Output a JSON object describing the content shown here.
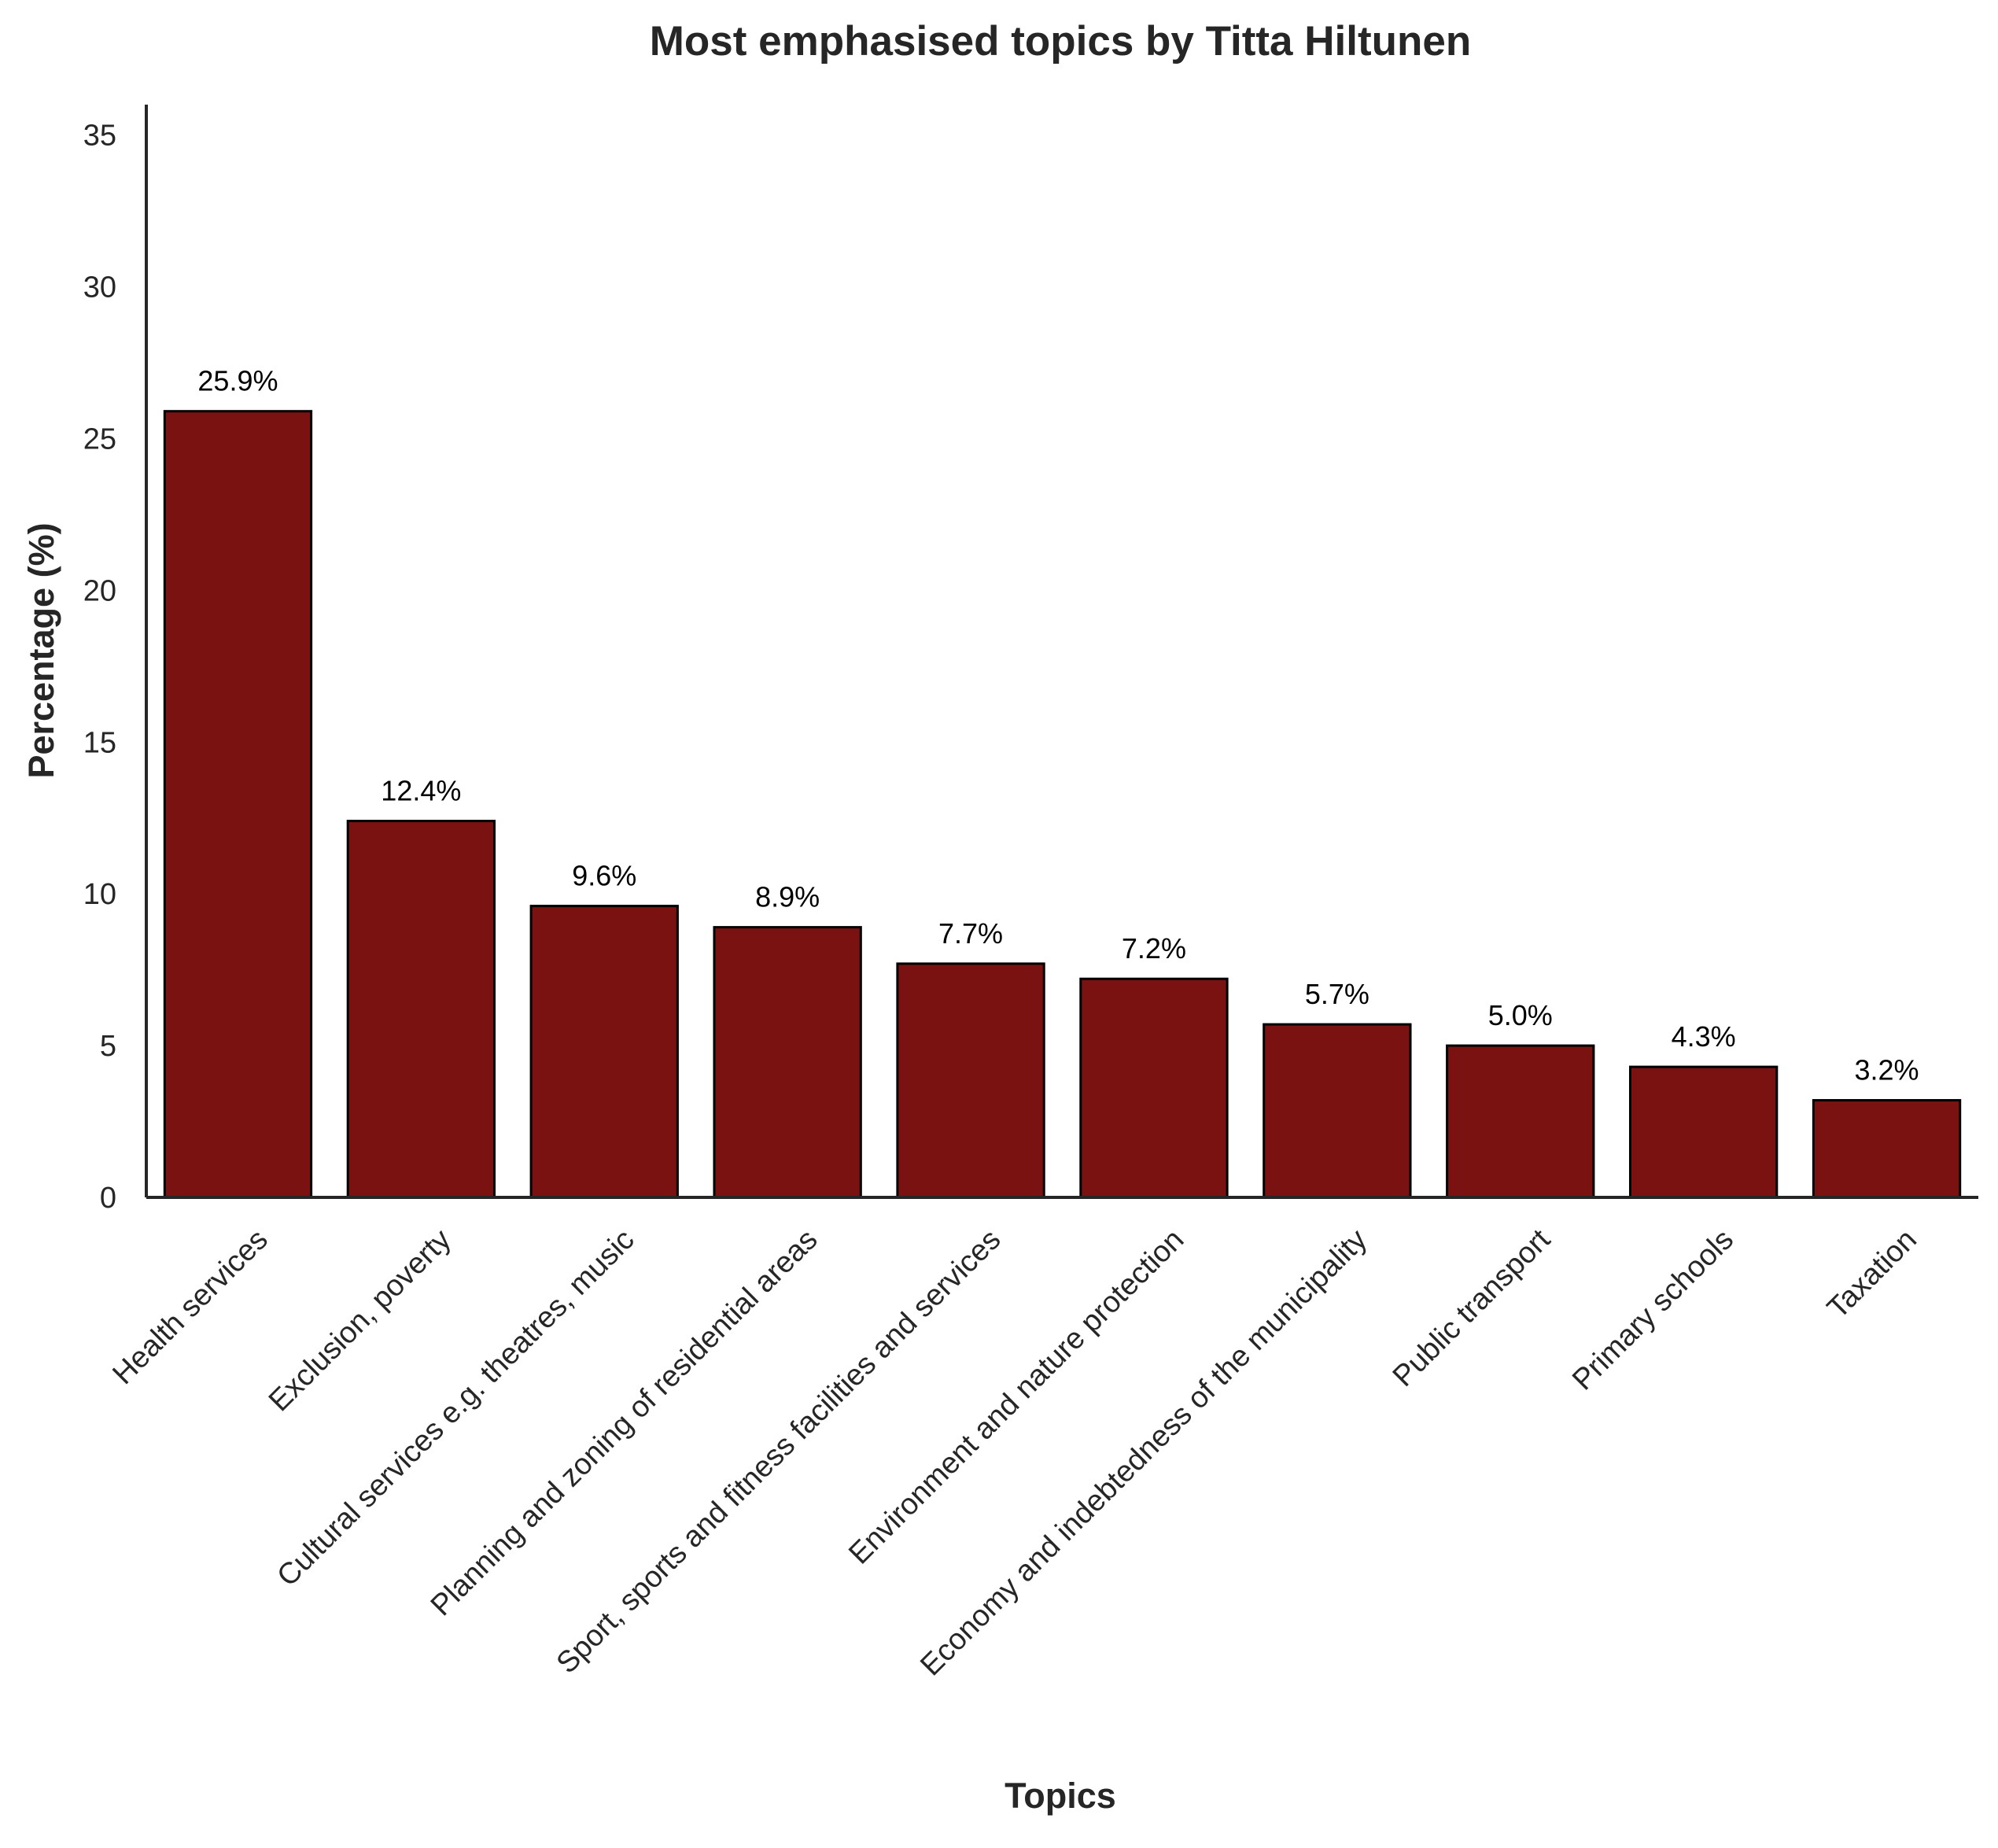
{
  "chart_data": {
    "type": "bar",
    "title": "Most emphasised topics by Titta Hiltunen",
    "xlabel": "Topics",
    "ylabel": "Percentage (%)",
    "ylim": [
      0,
      36
    ],
    "yticks": [
      0,
      5,
      10,
      15,
      20,
      25,
      30,
      35
    ],
    "grid": false,
    "bar_color": "#7a1212",
    "bar_edge_color": "#000000",
    "categories": [
      "Health services",
      "Exclusion, poverty",
      "Cultural services e.g. theatres, music",
      "Planning and zoning of residential areas",
      "Sport, sports and fitness facilities and services",
      "Environment and nature protection",
      "Economy and indebtedness of the municipality",
      "Public transport",
      "Primary schools",
      "Taxation"
    ],
    "values": [
      25.9,
      12.4,
      9.6,
      8.9,
      7.7,
      7.2,
      5.7,
      5.0,
      4.3,
      3.2
    ],
    "data_labels": [
      "25.9%",
      "12.4%",
      "9.6%",
      "8.9%",
      "7.7%",
      "7.2%",
      "5.7%",
      "5.0%",
      "4.3%",
      "3.2%"
    ]
  }
}
